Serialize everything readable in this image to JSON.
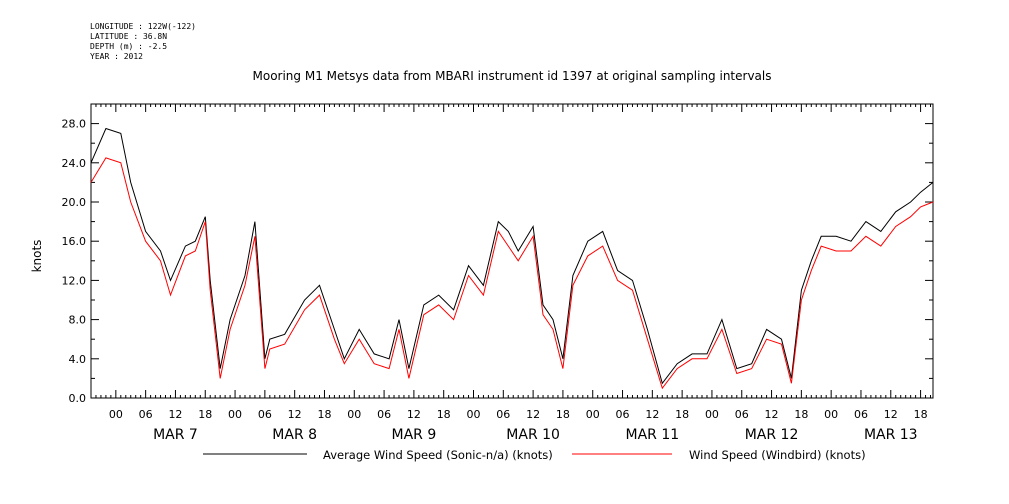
{
  "meta": {
    "longitude": "LONGITUDE : 122W(-122)",
    "latitude": "LATITUDE : 36.8N",
    "depth": "DEPTH (m) : -2.5",
    "year": "YEAR : 2012"
  },
  "colors": {
    "series1": "#000000",
    "series2": "#ff0000",
    "axes": "#000000"
  },
  "chart_data": {
    "type": "line",
    "title": "Mooring M1 Metsys data from MBARI instrument id 1397 at original sampling intervals",
    "xlabel": "",
    "ylabel": "knots",
    "ylim": [
      0,
      30
    ],
    "xlim": [
      "2012-03-06 19:00",
      "2012-03-13 20:30"
    ],
    "grid": false,
    "legend": "bottom",
    "yticks": [
      "0.0",
      "4.0",
      "8.0",
      "12.0",
      "16.0",
      "20.0",
      "24.0",
      "28.0"
    ],
    "hour_ticks": [
      "00",
      "06",
      "12",
      "18",
      "00",
      "06",
      "12",
      "18",
      "00",
      "06",
      "12",
      "18",
      "00",
      "06",
      "12",
      "18",
      "00",
      "06",
      "12",
      "18",
      "00",
      "06",
      "12",
      "18",
      "00",
      "06",
      "12",
      "18"
    ],
    "day_labels": [
      "MAR  7",
      "MAR  8",
      "MAR  9",
      "MAR 10",
      "MAR 11",
      "MAR 12",
      "MAR 13"
    ],
    "x": [
      "2012-03-06 19:00",
      "2012-03-06 22:00",
      "2012-03-07 01:00",
      "2012-03-07 03:00",
      "2012-03-07 06:00",
      "2012-03-07 09:00",
      "2012-03-07 11:00",
      "2012-03-07 14:00",
      "2012-03-07 16:00",
      "2012-03-07 18:00",
      "2012-03-07 19:00",
      "2012-03-07 21:00",
      "2012-03-07 23:00",
      "2012-03-08 02:00",
      "2012-03-08 04:00",
      "2012-03-08 06:00",
      "2012-03-08 07:00",
      "2012-03-08 10:00",
      "2012-03-08 14:00",
      "2012-03-08 17:00",
      "2012-03-08 20:00",
      "2012-03-08 22:00",
      "2012-03-09 01:00",
      "2012-03-09 04:00",
      "2012-03-09 07:00",
      "2012-03-09 09:00",
      "2012-03-09 11:00",
      "2012-03-09 14:00",
      "2012-03-09 17:00",
      "2012-03-09 20:00",
      "2012-03-09 23:00",
      "2012-03-10 02:00",
      "2012-03-10 05:00",
      "2012-03-10 07:00",
      "2012-03-10 09:00",
      "2012-03-10 12:00",
      "2012-03-10 14:00",
      "2012-03-10 16:00",
      "2012-03-10 18:00",
      "2012-03-10 20:00",
      "2012-03-10 23:00",
      "2012-03-11 02:00",
      "2012-03-11 05:00",
      "2012-03-11 08:00",
      "2012-03-11 11:00",
      "2012-03-11 14:00",
      "2012-03-11 17:00",
      "2012-03-11 20:00",
      "2012-03-11 23:00",
      "2012-03-12 02:00",
      "2012-03-12 05:00",
      "2012-03-12 08:00",
      "2012-03-12 11:00",
      "2012-03-12 14:00",
      "2012-03-12 16:00",
      "2012-03-12 18:00",
      "2012-03-12 20:00",
      "2012-03-12 22:00",
      "2012-03-13 01:00",
      "2012-03-13 04:00",
      "2012-03-13 07:00",
      "2012-03-13 10:00",
      "2012-03-13 13:00",
      "2012-03-13 16:00",
      "2012-03-13 18:00",
      "2012-03-13 20:30"
    ],
    "series": [
      {
        "name": "Average Wind Speed (Sonic-n/a) (knots)",
        "color": "#000000",
        "values": [
          24.0,
          27.5,
          27.0,
          22.0,
          17.0,
          15.0,
          12.0,
          15.5,
          16.0,
          18.5,
          12.0,
          3.0,
          8.0,
          12.5,
          18.0,
          4.0,
          6.0,
          6.5,
          10.0,
          11.5,
          7.0,
          4.0,
          7.0,
          4.5,
          4.0,
          8.0,
          3.0,
          9.5,
          10.5,
          9.0,
          13.5,
          11.5,
          18.0,
          17.0,
          15.0,
          17.5,
          9.5,
          8.0,
          4.0,
          12.5,
          16.0,
          17.0,
          13.0,
          12.0,
          7.0,
          1.5,
          3.5,
          4.5,
          4.5,
          8.0,
          3.0,
          3.5,
          7.0,
          6.0,
          2.0,
          11.0,
          14.0,
          16.5,
          16.5,
          16.0,
          18.0,
          17.0,
          19.0,
          20.0,
          21.0,
          22.0
        ]
      },
      {
        "name": "Wind Speed (Windbird) (knots)",
        "color": "#ff0000",
        "values": [
          22.0,
          24.5,
          24.0,
          20.0,
          16.0,
          14.0,
          10.5,
          14.5,
          15.0,
          18.0,
          11.0,
          2.0,
          7.0,
          11.5,
          16.5,
          3.0,
          5.0,
          5.5,
          9.0,
          10.5,
          6.0,
          3.5,
          6.0,
          3.5,
          3.0,
          7.0,
          2.0,
          8.5,
          9.5,
          8.0,
          12.5,
          10.5,
          17.0,
          15.5,
          14.0,
          16.5,
          8.5,
          7.0,
          3.0,
          11.5,
          14.5,
          15.5,
          12.0,
          11.0,
          6.0,
          1.0,
          3.0,
          4.0,
          4.0,
          7.0,
          2.5,
          3.0,
          6.0,
          5.5,
          1.5,
          10.0,
          13.0,
          15.5,
          15.0,
          15.0,
          16.5,
          15.5,
          17.5,
          18.5,
          19.5,
          20.0
        ]
      }
    ]
  }
}
